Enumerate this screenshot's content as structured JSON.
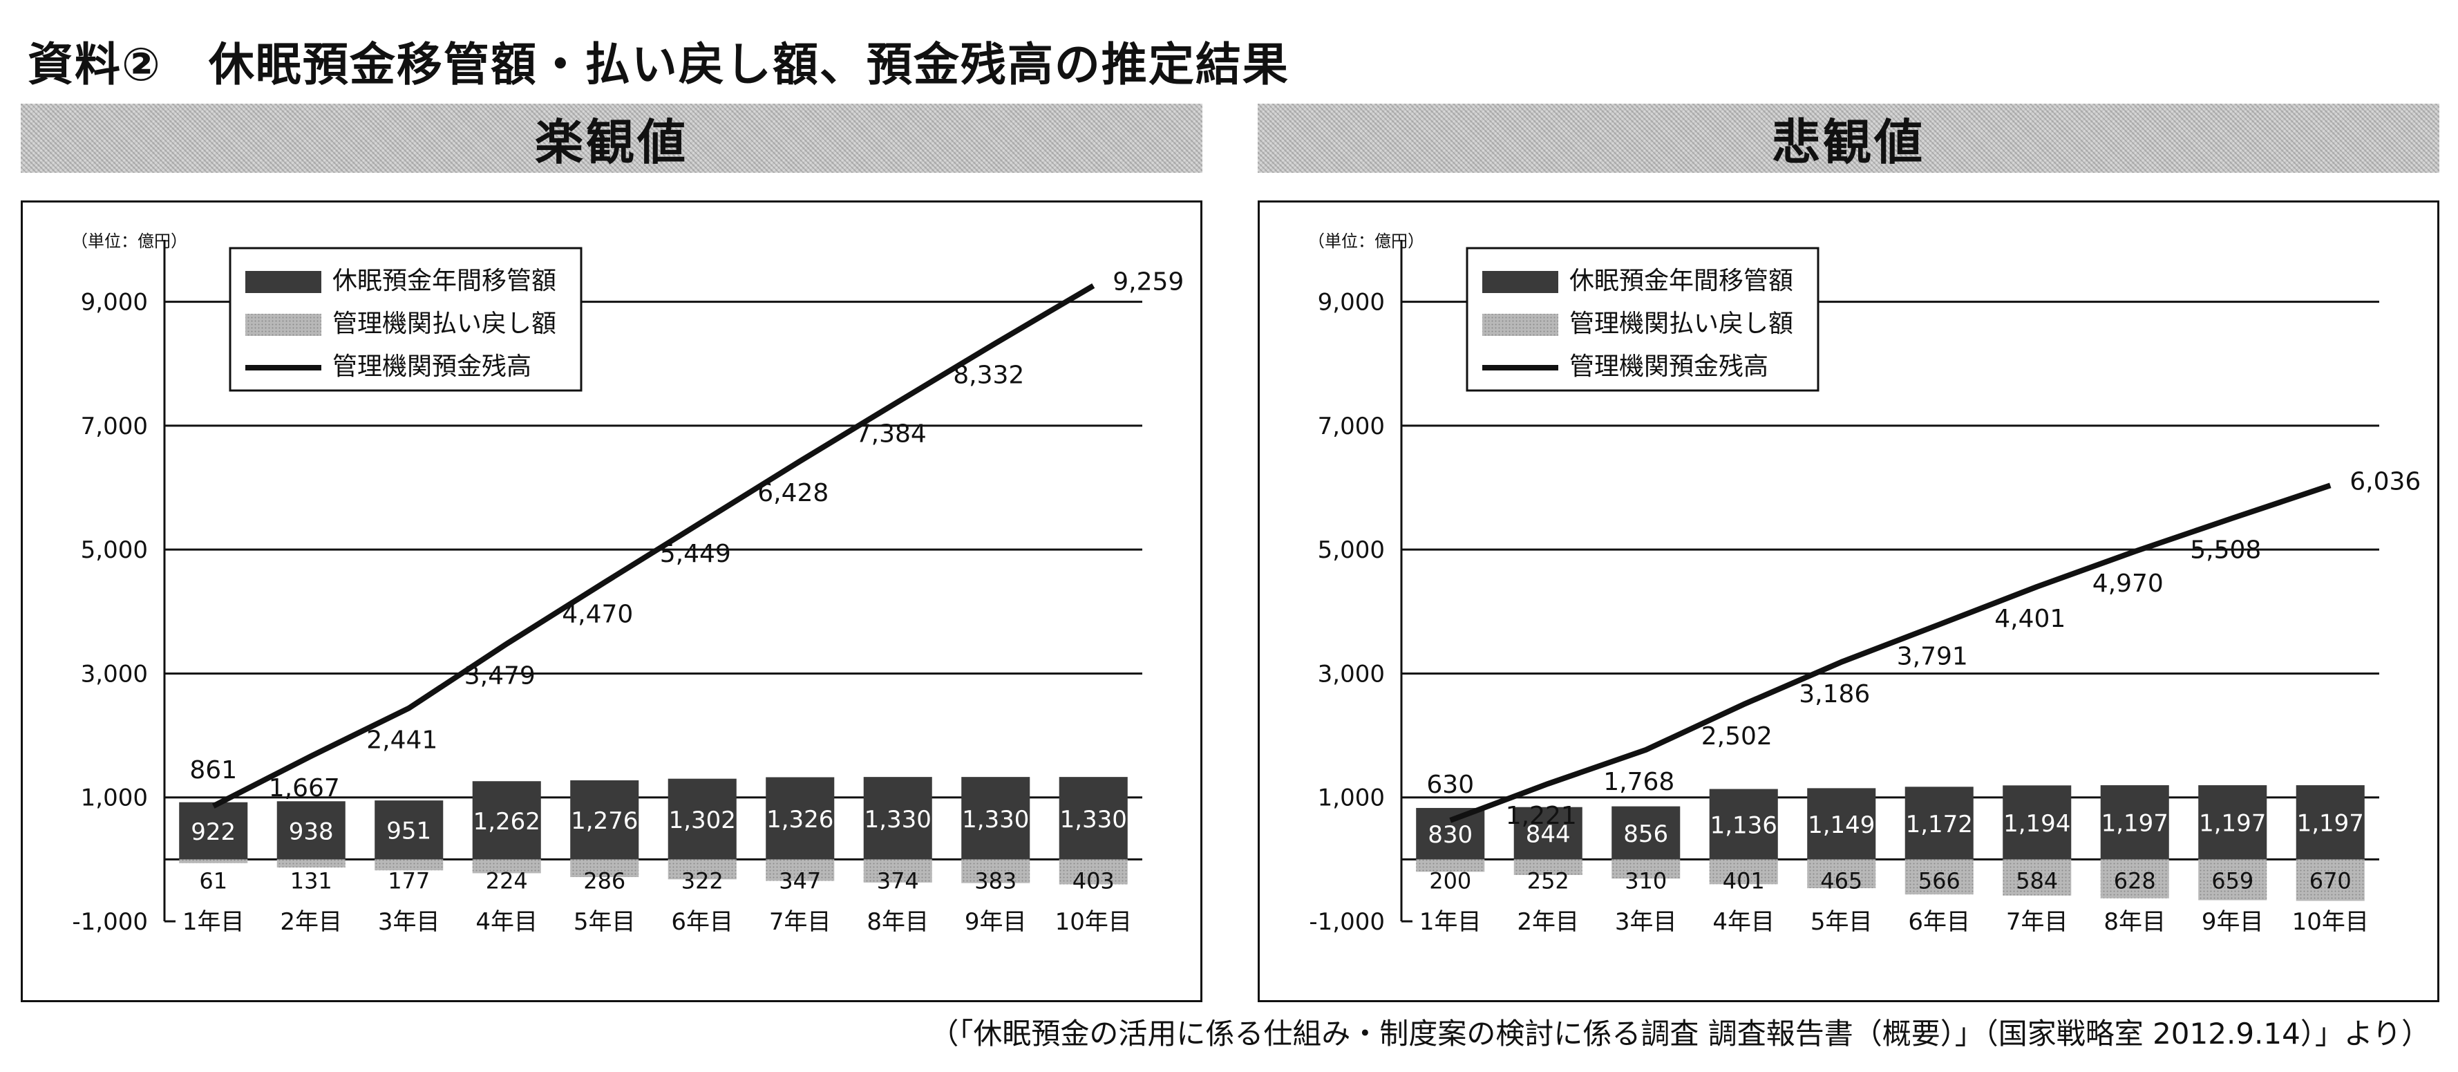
{
  "page": {
    "title": "資料②　休眠預金移管額・払い戻し額、預金残高の推定結果",
    "source": "（「休眠預金の活用に係る仕組み・制度案の検討に係る調査 調査報告書（概要）」（国家戦略室 2012.9.14）」より）"
  },
  "colors": {
    "transfer_bar": "#3a3a3a",
    "refund_bar": "#b8b8b8",
    "balance_line": "#111111",
    "grid": "#111111"
  },
  "chart_data": [
    {
      "type": "bar",
      "title": "楽観値",
      "unit_label": "（単位：億円）",
      "categories": [
        "1年目",
        "2年目",
        "3年目",
        "4年目",
        "5年目",
        "6年目",
        "7年目",
        "8年目",
        "9年目",
        "10年目"
      ],
      "ylim": [
        -1000,
        10000
      ],
      "yticks": [
        -1000,
        1000,
        3000,
        5000,
        7000,
        9000
      ],
      "ytick_labels": [
        "-1,000",
        "1,000",
        "3,000",
        "5,000",
        "7,000",
        "9,000"
      ],
      "grid": true,
      "legend_position": "top-left",
      "series": [
        {
          "name": "休眠預金年間移管額",
          "type": "bar",
          "values": [
            922,
            938,
            951,
            1262,
            1276,
            1302,
            1326,
            1330,
            1330,
            1330
          ],
          "labels": [
            "922",
            "938",
            "951",
            "1,262",
            "1,276",
            "1,302",
            "1,326",
            "1,330",
            "1,330",
            "1,330"
          ]
        },
        {
          "name": "管理機関払い戻し額",
          "type": "bar",
          "values": [
            -61,
            -131,
            -177,
            -224,
            -286,
            -322,
            -347,
            -374,
            -383,
            -403
          ],
          "labels": [
            "61",
            "131",
            "177",
            "224",
            "286",
            "322",
            "347",
            "374",
            "383",
            "403"
          ]
        },
        {
          "name": "管理機関預金残高",
          "type": "line",
          "values": [
            861,
            1667,
            2441,
            3479,
            4470,
            5449,
            6428,
            7384,
            8332,
            9259
          ],
          "labels": [
            "861",
            "1,667",
            "2,441",
            "3,479",
            "4,470",
            "5,449",
            "6,428",
            "7,384",
            "8,332",
            "9,259"
          ]
        }
      ]
    },
    {
      "type": "bar",
      "title": "悲観値",
      "unit_label": "（単位：億円）",
      "categories": [
        "1年目",
        "2年目",
        "3年目",
        "4年目",
        "5年目",
        "6年目",
        "7年目",
        "8年目",
        "9年目",
        "10年目"
      ],
      "ylim": [
        -1000,
        10000
      ],
      "yticks": [
        -1000,
        1000,
        3000,
        5000,
        7000,
        9000
      ],
      "ytick_labels": [
        "-1,000",
        "1,000",
        "3,000",
        "5,000",
        "7,000",
        "9,000"
      ],
      "grid": true,
      "legend_position": "top-left",
      "series": [
        {
          "name": "休眠預金年間移管額",
          "type": "bar",
          "values": [
            830,
            844,
            856,
            1136,
            1149,
            1172,
            1194,
            1197,
            1197,
            1197
          ],
          "labels": [
            "830",
            "844",
            "856",
            "1,136",
            "1,149",
            "1,172",
            "1,194",
            "1,197",
            "1,197",
            "1,197"
          ]
        },
        {
          "name": "管理機関払い戻し額",
          "type": "bar",
          "values": [
            -200,
            -252,
            -310,
            -401,
            -465,
            -566,
            -584,
            -628,
            -659,
            -670
          ],
          "labels": [
            "200",
            "252",
            "310",
            "401",
            "465",
            "566",
            "584",
            "628",
            "659",
            "670"
          ]
        },
        {
          "name": "管理機関預金残高",
          "type": "line",
          "values": [
            630,
            1221,
            1768,
            2502,
            3186,
            3791,
            4401,
            4970,
            5508,
            6036
          ],
          "labels": [
            "630",
            "1,221",
            "1,768",
            "2,502",
            "3,186",
            "3,791",
            "4,401",
            "4,970",
            "5,508",
            "6,036"
          ]
        }
      ]
    }
  ]
}
